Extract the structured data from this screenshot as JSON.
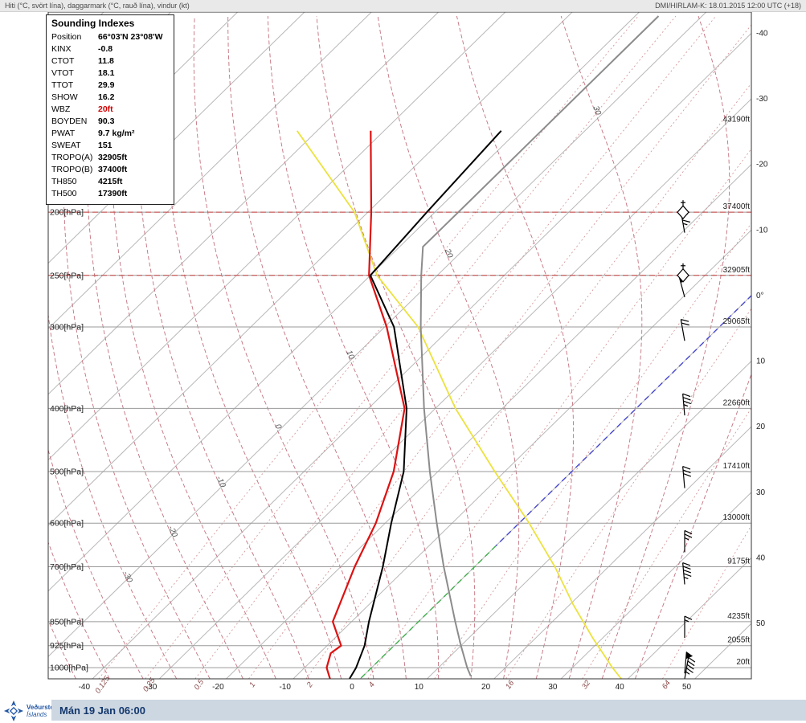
{
  "header": {
    "left": "Hiti (°C, svört lína), daggarmark (°C, rauð lína), vindur (kt)",
    "right": "DMI/HIRLAM-K: 18.01.2015 12:00 UTC (+18)"
  },
  "footer": {
    "logo_line1": "Veðurstofa",
    "logo_line2": "Íslands",
    "datetime": "Mán 19 Jan 06:00"
  },
  "indexes": {
    "title": "Sounding Indexes",
    "rows": [
      {
        "label": "Position",
        "value": "66°03'N 23°08'W",
        "highlight": false
      },
      {
        "label": "KINX",
        "value": "-0.8",
        "highlight": false
      },
      {
        "label": "CTOT",
        "value": "11.8",
        "highlight": false
      },
      {
        "label": "VTOT",
        "value": "18.1",
        "highlight": false
      },
      {
        "label": "TTOT",
        "value": "29.9",
        "highlight": false
      },
      {
        "label": "SHOW",
        "value": "16.2",
        "highlight": false
      },
      {
        "label": "WBZ",
        "value": "20ft",
        "highlight": true
      },
      {
        "label": "BOYDEN",
        "value": "90.3",
        "highlight": false
      },
      {
        "label": "PWAT",
        "value": "9.7 kg/m²",
        "highlight": false
      },
      {
        "label": "SWEAT",
        "value": "151",
        "highlight": false
      },
      {
        "label": "TROPO(A)",
        "value": "32905ft",
        "highlight": false
      },
      {
        "label": "TROPO(B)",
        "value": "37400ft",
        "highlight": false
      },
      {
        "label": "TH850",
        "value": "4215ft",
        "highlight": false
      },
      {
        "label": "TH500",
        "value": "17390ft",
        "highlight": false
      }
    ]
  },
  "chart_data": {
    "type": "skewt_log_p_sounding",
    "title": "DMI/HIRLAM-K vertical sounding, skew-T log-p",
    "pressure_levels_hpa": [
      200,
      250,
      300,
      400,
      500,
      600,
      700,
      850,
      925,
      1000
    ],
    "pressure_label_suffix": "[hPa]",
    "height_labels": [
      {
        "p": 147,
        "text": "43190ft"
      },
      {
        "p": 200,
        "text": "37400ft"
      },
      {
        "p": 250,
        "text": "32905ft"
      },
      {
        "p": 300,
        "text": "29065ft"
      },
      {
        "p": 400,
        "text": "22660ft"
      },
      {
        "p": 500,
        "text": "17410ft"
      },
      {
        "p": 600,
        "text": "13000ft"
      },
      {
        "p": 700,
        "text": "9175ft"
      },
      {
        "p": 850,
        "text": "4235ft"
      },
      {
        "p": 925,
        "text": "2055ft"
      },
      {
        "p": 1000,
        "text": "20ft"
      }
    ],
    "bottom_temp_labels": [
      -40,
      -30,
      -20,
      -10,
      0,
      10,
      20,
      30,
      40,
      50
    ],
    "right_temp_labels": [
      "-40",
      "-30",
      "-20",
      "-10",
      "0°",
      "10",
      "20",
      "30",
      "40",
      "50"
    ],
    "mixing_ratio_lines_gkg": [
      0.125,
      0.25,
      0.5,
      1,
      2,
      4,
      8,
      16,
      32,
      64
    ],
    "mixing_ratio_labels": [
      "0.125",
      "0.25",
      "0.5",
      "1",
      "2",
      "4",
      "16",
      "32",
      "64"
    ],
    "moist_adiabats_thetaw_c": {
      "min": -60,
      "max": 40,
      "step": 5
    },
    "moist_adiabat_labels": [
      -30,
      -20,
      -10,
      0,
      10,
      20,
      30
    ],
    "tropopause_lines_hpa": [
      200,
      250
    ],
    "tropopause_markers_hpa": [
      200,
      250
    ],
    "temperature_profile": [
      [
        1040,
        -1.6
      ],
      [
        1000,
        -2.3
      ],
      [
        925,
        -4.4
      ],
      [
        850,
        -7.4
      ],
      [
        700,
        -13.7
      ],
      [
        600,
        -19.1
      ],
      [
        500,
        -25.1
      ],
      [
        400,
        -34.3
      ],
      [
        300,
        -48.6
      ],
      [
        250,
        -60.0
      ],
      [
        200,
        -61.2
      ],
      [
        150,
        -62.5
      ]
    ],
    "dewpoint_profile": [
      [
        1040,
        -4.5
      ],
      [
        1000,
        -6.7
      ],
      [
        950,
        -8.3
      ],
      [
        925,
        -7.9
      ],
      [
        850,
        -12.8
      ],
      [
        700,
        -17.9
      ],
      [
        600,
        -21.4
      ],
      [
        500,
        -26.6
      ],
      [
        400,
        -34.6
      ],
      [
        300,
        -49.7
      ],
      [
        250,
        -60.2
      ],
      [
        200,
        -69.5
      ],
      [
        150,
        -82.0
      ]
    ],
    "isa_profile": [
      [
        1030,
        16.1
      ],
      [
        1000,
        14.3
      ],
      [
        925,
        10.0
      ],
      [
        850,
        5.5
      ],
      [
        700,
        -4.6
      ],
      [
        600,
        -12.3
      ],
      [
        500,
        -21.2
      ],
      [
        400,
        -31.7
      ],
      [
        300,
        -44.6
      ],
      [
        250,
        -52.4
      ],
      [
        226,
        -56.5
      ],
      [
        200,
        -56.5
      ],
      [
        150,
        -56.5
      ],
      [
        100,
        -56.5
      ]
    ],
    "yellow_line": [
      [
        1040,
        39
      ],
      [
        1000,
        36
      ],
      [
        900,
        28.5
      ],
      [
        800,
        20.5
      ],
      [
        700,
        12
      ],
      [
        600,
        1.5
      ],
      [
        500,
        -11.5
      ],
      [
        400,
        -27
      ],
      [
        300,
        -45
      ],
      [
        250,
        -59
      ],
      [
        200,
        -72
      ],
      [
        150,
        -93
      ]
    ],
    "freezing_line": {
      "temp_c": 0,
      "blue_segment_hpa": [
        268,
        650
      ],
      "green_segment_hpa": [
        650,
        1040
      ]
    },
    "wind_barbs": [
      {
        "p": 215,
        "spd_kt": 65,
        "dir_deg": 350
      },
      {
        "p": 270,
        "spd_kt": 50,
        "dir_deg": 345
      },
      {
        "p": 315,
        "spd_kt": 20,
        "dir_deg": 350
      },
      {
        "p": 410,
        "spd_kt": 35,
        "dir_deg": 355
      },
      {
        "p": 530,
        "spd_kt": 30,
        "dir_deg": 355
      },
      {
        "p": 665,
        "spd_kt": 25,
        "dir_deg": 0
      },
      {
        "p": 745,
        "spd_kt": 45,
        "dir_deg": 355
      },
      {
        "p": 900,
        "spd_kt": 15,
        "dir_deg": 0
      },
      {
        "p": 1020,
        "spd_kt": 50,
        "dir_deg": 5
      },
      {
        "p": 1040,
        "spd_kt": 45,
        "dir_deg": 10
      }
    ],
    "axis_ranges": {
      "pressure_hpa": [
        100,
        1040
      ],
      "temp_at_bottom_c": [
        -45,
        50
      ]
    },
    "colors": {
      "isotherm": "#b8b8b8",
      "pressure_line": "#9a9a9a",
      "moist_adiabat": "#c4717e",
      "mixing_ratio": "#d29090",
      "tropopause": "#cc4444",
      "temperature": "#000000",
      "dewpoint": "#dd1111",
      "isa": "#8c8c8c",
      "yellow": "#ece23e",
      "freezing_blue": "#4646d0",
      "freezing_green": "#3fae4a",
      "frame": "#333333",
      "label": "#222222"
    }
  }
}
